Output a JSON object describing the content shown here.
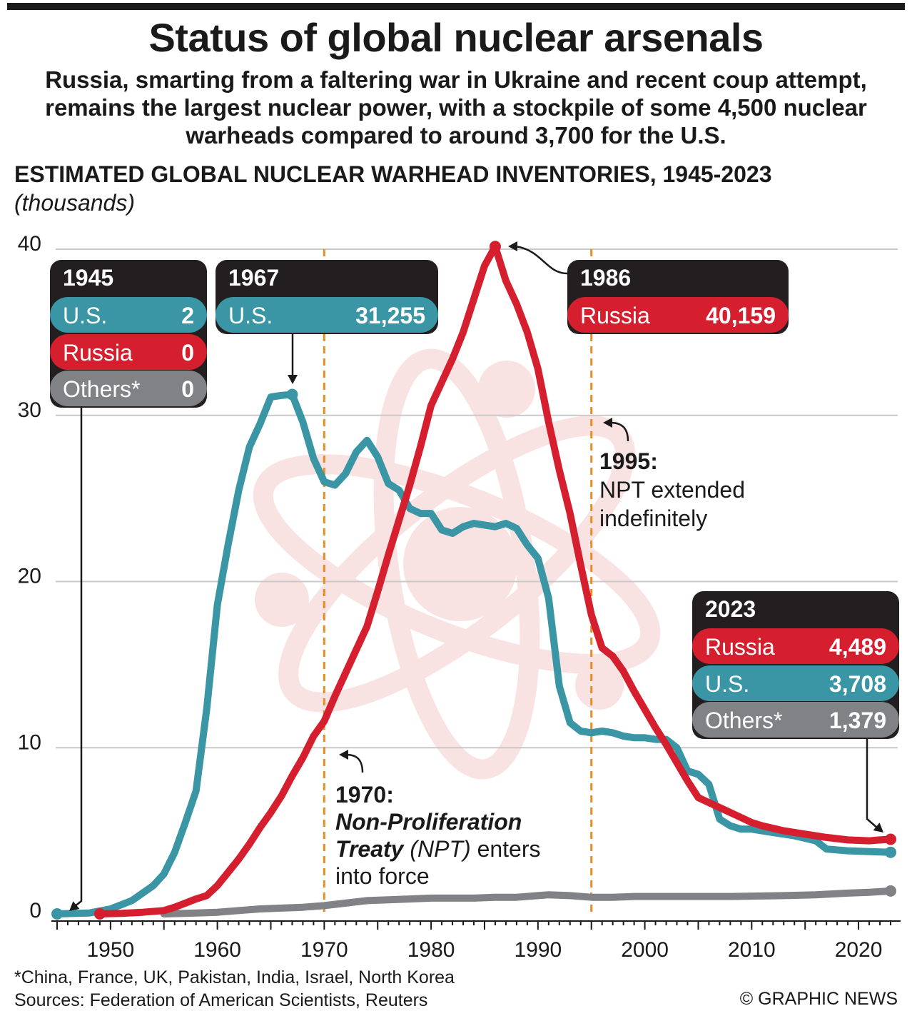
{
  "title": "Status of global nuclear arsenals",
  "subtitle": "Russia, smarting from a faltering war in Ukraine and recent coup attempt, remains the largest nuclear power, with a stockpile of some 4,500 nuclear warheads compared to around 3,700 for the U.S.",
  "colors": {
    "us": "#3a95a4",
    "russia": "#d51f2e",
    "others": "#808285",
    "box": "#231f20",
    "marker": "#ee8a1f",
    "atom": "#f7dede"
  },
  "chart_data": {
    "type": "line",
    "title": "ESTIMATED GLOBAL NUCLEAR WARHEAD INVENTORIES, 1945-2023",
    "ylabel": "(thousands)",
    "xlim": [
      1945,
      2023
    ],
    "ylim": [
      0,
      40
    ],
    "yticks": [
      "0",
      "10",
      "20",
      "30",
      "40"
    ],
    "xticks": [
      "1950",
      "1960",
      "1970",
      "1980",
      "1990",
      "2000",
      "2010",
      "2020"
    ],
    "series": [
      {
        "name": "Others*",
        "key": "others",
        "points": [
          [
            1955,
            0
          ],
          [
            1958,
            0.05
          ],
          [
            1960,
            0.1
          ],
          [
            1962,
            0.2
          ],
          [
            1964,
            0.3
          ],
          [
            1966,
            0.35
          ],
          [
            1968,
            0.4
          ],
          [
            1970,
            0.5
          ],
          [
            1972,
            0.65
          ],
          [
            1974,
            0.8
          ],
          [
            1976,
            0.85
          ],
          [
            1978,
            0.9
          ],
          [
            1980,
            0.95
          ],
          [
            1982,
            0.95
          ],
          [
            1984,
            0.95
          ],
          [
            1986,
            1.0
          ],
          [
            1988,
            1.0
          ],
          [
            1990,
            1.1
          ],
          [
            1991,
            1.15
          ],
          [
            1993,
            1.1
          ],
          [
            1995,
            1.0
          ],
          [
            1997,
            1.0
          ],
          [
            1999,
            1.05
          ],
          [
            2001,
            1.05
          ],
          [
            2003,
            1.05
          ],
          [
            2005,
            1.05
          ],
          [
            2008,
            1.05
          ],
          [
            2010,
            1.07
          ],
          [
            2013,
            1.1
          ],
          [
            2016,
            1.15
          ],
          [
            2019,
            1.25
          ],
          [
            2021,
            1.3
          ],
          [
            2023,
            1.379
          ]
        ]
      },
      {
        "name": "U.S.",
        "key": "us",
        "points": [
          [
            1945,
            0.002
          ],
          [
            1948,
            0.05
          ],
          [
            1950,
            0.3
          ],
          [
            1952,
            0.8
          ],
          [
            1954,
            1.7
          ],
          [
            1955,
            2.4
          ],
          [
            1956,
            3.7
          ],
          [
            1957,
            5.5
          ],
          [
            1958,
            7.4
          ],
          [
            1959,
            12.3
          ],
          [
            1960,
            18.6
          ],
          [
            1961,
            22.2
          ],
          [
            1962,
            25.5
          ],
          [
            1963,
            28.1
          ],
          [
            1964,
            29.5
          ],
          [
            1965,
            31.1
          ],
          [
            1966,
            31.2
          ],
          [
            1967,
            31.255
          ],
          [
            1968,
            29.6
          ],
          [
            1969,
            27.4
          ],
          [
            1970,
            26.0
          ],
          [
            1971,
            25.8
          ],
          [
            1972,
            26.5
          ],
          [
            1973,
            27.8
          ],
          [
            1974,
            28.5
          ],
          [
            1975,
            27.5
          ],
          [
            1976,
            25.9
          ],
          [
            1977,
            25.5
          ],
          [
            1978,
            24.4
          ],
          [
            1979,
            24.1
          ],
          [
            1980,
            24.1
          ],
          [
            1981,
            23.1
          ],
          [
            1982,
            22.9
          ],
          [
            1983,
            23.3
          ],
          [
            1984,
            23.5
          ],
          [
            1985,
            23.4
          ],
          [
            1986,
            23.3
          ],
          [
            1987,
            23.5
          ],
          [
            1988,
            23.2
          ],
          [
            1989,
            22.2
          ],
          [
            1990,
            21.4
          ],
          [
            1991,
            19.0
          ],
          [
            1992,
            13.7
          ],
          [
            1993,
            11.5
          ],
          [
            1994,
            11.0
          ],
          [
            1995,
            10.9
          ],
          [
            1996,
            11.0
          ],
          [
            1997,
            10.9
          ],
          [
            1998,
            10.7
          ],
          [
            1999,
            10.6
          ],
          [
            2000,
            10.6
          ],
          [
            2001,
            10.5
          ],
          [
            2002,
            10.5
          ],
          [
            2003,
            10.0
          ],
          [
            2004,
            8.6
          ],
          [
            2005,
            8.4
          ],
          [
            2006,
            7.8
          ],
          [
            2007,
            5.7
          ],
          [
            2008,
            5.3
          ],
          [
            2009,
            5.1
          ],
          [
            2010,
            5.1
          ],
          [
            2012,
            4.9
          ],
          [
            2014,
            4.7
          ],
          [
            2016,
            4.4
          ],
          [
            2017,
            3.9
          ],
          [
            2019,
            3.8
          ],
          [
            2021,
            3.75
          ],
          [
            2023,
            3.708
          ]
        ]
      },
      {
        "name": "Russia",
        "key": "russia",
        "points": [
          [
            1949,
            0.001
          ],
          [
            1951,
            0.03
          ],
          [
            1953,
            0.1
          ],
          [
            1955,
            0.2
          ],
          [
            1956,
            0.4
          ],
          [
            1957,
            0.65
          ],
          [
            1958,
            0.9
          ],
          [
            1959,
            1.1
          ],
          [
            1960,
            1.7
          ],
          [
            1961,
            2.5
          ],
          [
            1962,
            3.3
          ],
          [
            1963,
            4.2
          ],
          [
            1964,
            5.2
          ],
          [
            1965,
            6.1
          ],
          [
            1966,
            7.1
          ],
          [
            1967,
            8.3
          ],
          [
            1968,
            9.4
          ],
          [
            1969,
            10.7
          ],
          [
            1970,
            11.6
          ],
          [
            1971,
            13.1
          ],
          [
            1972,
            14.5
          ],
          [
            1973,
            15.9
          ],
          [
            1974,
            17.3
          ],
          [
            1975,
            19.4
          ],
          [
            1976,
            21.6
          ],
          [
            1977,
            23.7
          ],
          [
            1978,
            25.8
          ],
          [
            1979,
            28.1
          ],
          [
            1980,
            30.6
          ],
          [
            1981,
            32.0
          ],
          [
            1982,
            33.4
          ],
          [
            1983,
            35.0
          ],
          [
            1984,
            37.0
          ],
          [
            1985,
            39.0
          ],
          [
            1986,
            40.159
          ],
          [
            1987,
            38.1
          ],
          [
            1988,
            36.7
          ],
          [
            1989,
            35.0
          ],
          [
            1990,
            32.8
          ],
          [
            1991,
            29.6
          ],
          [
            1992,
            26.7
          ],
          [
            1993,
            24.1
          ],
          [
            1994,
            21.0
          ],
          [
            1995,
            18.0
          ],
          [
            1996,
            16.0
          ],
          [
            1997,
            15.5
          ],
          [
            1998,
            14.6
          ],
          [
            1999,
            13.4
          ],
          [
            2000,
            12.3
          ],
          [
            2001,
            11.2
          ],
          [
            2002,
            10.2
          ],
          [
            2003,
            9.1
          ],
          [
            2004,
            8.0
          ],
          [
            2005,
            7.0
          ],
          [
            2006,
            6.7
          ],
          [
            2007,
            6.4
          ],
          [
            2008,
            6.1
          ],
          [
            2009,
            5.8
          ],
          [
            2010,
            5.5
          ],
          [
            2011,
            5.3
          ],
          [
            2013,
            5.0
          ],
          [
            2015,
            4.8
          ],
          [
            2017,
            4.6
          ],
          [
            2019,
            4.45
          ],
          [
            2021,
            4.4
          ],
          [
            2022,
            4.45
          ],
          [
            2023,
            4.489
          ]
        ]
      }
    ],
    "markers": [
      1970,
      1995
    ]
  },
  "boxes": [
    {
      "year": "1945",
      "rows": [
        {
          "label": "U.S.",
          "value": "2",
          "key": "us"
        },
        {
          "label": "Russia",
          "value": "0",
          "key": "russia"
        },
        {
          "label": "Others*",
          "value": "0",
          "key": "others"
        }
      ]
    },
    {
      "year": "1967",
      "rows": [
        {
          "label": "U.S.",
          "value": "31,255",
          "key": "us"
        }
      ]
    },
    {
      "year": "1986",
      "rows": [
        {
          "label": "Russia",
          "value": "40,159",
          "key": "russia"
        }
      ]
    },
    {
      "year": "2023",
      "rows": [
        {
          "label": "Russia",
          "value": "4,489",
          "key": "russia"
        },
        {
          "label": "U.S.",
          "value": "3,708",
          "key": "us"
        },
        {
          "label": "Others*",
          "value": "1,379",
          "key": "others"
        }
      ]
    }
  ],
  "annotations": {
    "npt1970": {
      "year": "1970:",
      "treaty": "Non-Proliferation",
      "treaty2": "Treaty",
      "abbr": "(NPT)",
      "enters": " enters",
      "force": "into force"
    },
    "npt1995": {
      "year": "1995:",
      "line1": "NPT extended",
      "line2": "indefinitely"
    }
  },
  "footnote": "*China, France, UK, Pakistan, India, Israel, North Korea",
  "sources": "Sources: Federation of American Scientists, Reuters",
  "credit": "© GRAPHIC NEWS"
}
